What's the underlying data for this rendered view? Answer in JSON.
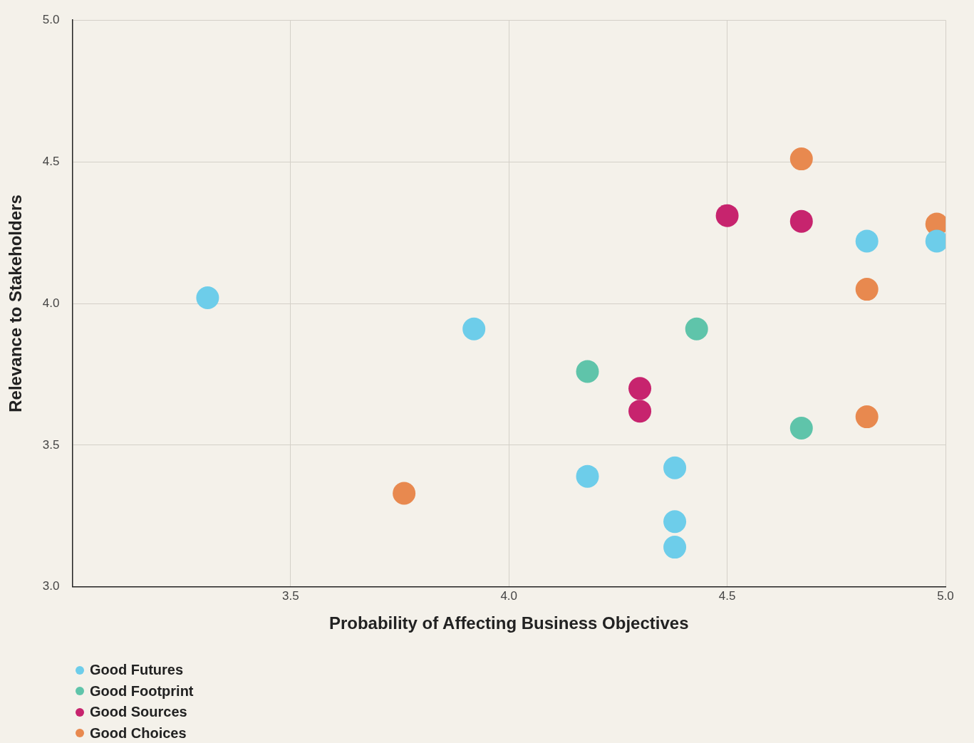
{
  "chart_data": {
    "type": "scatter",
    "xlabel": "Probability of Affecting Business Objectives",
    "ylabel": "Relevance to Stakeholders",
    "xlim": [
      3,
      5
    ],
    "xticks": [
      {
        "value": 3.5,
        "label": "3.5"
      },
      {
        "value": 4,
        "label": "4.0"
      },
      {
        "value": 4.5,
        "label": "4.5"
      },
      {
        "value": 5,
        "label": "5.0"
      }
    ],
    "ylim": [
      3,
      5
    ],
    "yticks": [
      {
        "value": 3,
        "label": "3.0"
      },
      {
        "value": 3.5,
        "label": "3.5"
      },
      {
        "value": 4,
        "label": "4.0"
      },
      {
        "value": 4.5,
        "label": "4.5"
      },
      {
        "value": 5,
        "label": "5.0"
      }
    ],
    "grid": true,
    "legend": "bottom left",
    "marker": "circle",
    "series": [
      {
        "name": "Good Futures",
        "color": "#6dcdea",
        "x": [
          3.31,
          3.92,
          4.18,
          4.38,
          4.38,
          4.38,
          4.82,
          4.98
        ],
        "values": [
          4.02,
          3.91,
          3.39,
          3.42,
          3.23,
          3.14,
          4.22,
          4.22
        ]
      },
      {
        "name": "Good Footprint",
        "color": "#5fc4aa",
        "x": [
          4.18,
          4.43,
          4.67
        ],
        "values": [
          3.76,
          3.91,
          3.56
        ]
      },
      {
        "name": "Good Sources",
        "color": "#c7246e",
        "x": [
          4.5,
          4.67,
          4.3,
          4.3
        ],
        "values": [
          4.31,
          4.29,
          3.7,
          3.62
        ]
      },
      {
        "name": "Good Choices",
        "color": "#e8894f",
        "x": [
          4.67,
          4.98,
          4.82,
          4.82,
          3.76
        ],
        "values": [
          4.51,
          4.28,
          4.05,
          3.6,
          3.33
        ]
      }
    ]
  }
}
